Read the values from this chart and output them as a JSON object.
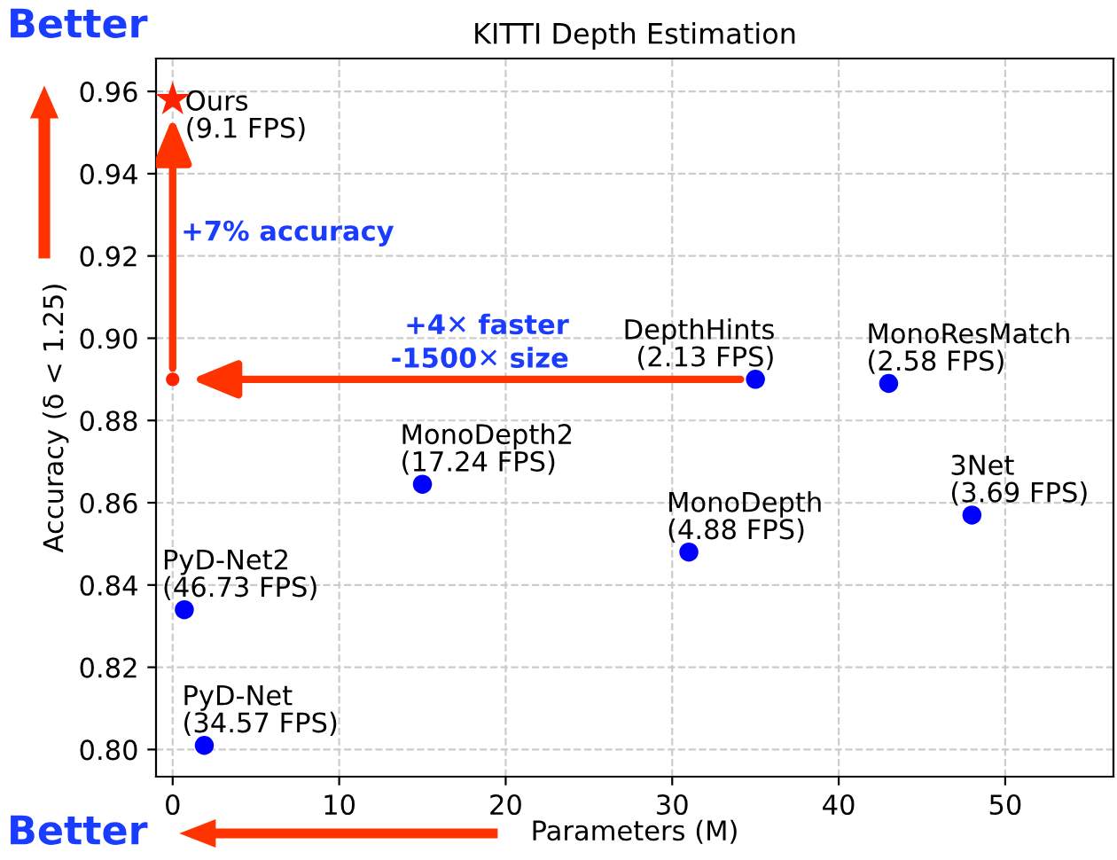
{
  "chart_data": {
    "type": "scatter",
    "title": "KITTI Depth Estimation",
    "xlabel": "Parameters (M)",
    "ylabel": "Accuracy (δ < 1.25)",
    "xlim": [
      -1,
      56.5
    ],
    "ylim": [
      0.7934,
      0.968
    ],
    "xticks": [
      0,
      10,
      20,
      30,
      40,
      50
    ],
    "yticks": [
      {
        "value": 0.8,
        "label": "0.80"
      },
      0.82,
      0.84,
      0.86,
      0.88,
      {
        "value": 0.9,
        "label": "0.90"
      },
      0.92,
      0.94,
      0.96
    ],
    "grid": true,
    "series": [
      {
        "x": [
          0
        ],
        "values": [
          0.958
        ],
        "color": "#ff2200",
        "marker": "star"
      },
      {
        "x": [
          0
        ],
        "values": [
          0.89
        ],
        "color": "#ff2200",
        "marker": "circle"
      },
      {
        "x": [
          35,
          43,
          15,
          31,
          48,
          0.7,
          1.9
        ],
        "values": [
          0.89,
          0.889,
          0.8645,
          0.848,
          0.857,
          0.834,
          0.801
        ],
        "color": "#0000ff",
        "marker": "circle"
      }
    ],
    "annotations": [
      {
        "text": "Ours\n(9.1 FPS)",
        "x": 0,
        "y": 0.958
      },
      {
        "text": "DepthHints\n(2.13 FPS)",
        "x": 35,
        "y": 0.89
      },
      {
        "text": "MonoResMatch\n(2.58 FPS)",
        "x": 43,
        "y": 0.889
      },
      {
        "text": "MonoDepth2\n(17.24 FPS)",
        "x": 15,
        "y": 0.8645
      },
      {
        "text": "MonoDepth\n(4.88 FPS)",
        "x": 31,
        "y": 0.848
      },
      {
        "text": "3Net\n(3.69 FPS)",
        "x": 48,
        "y": 0.857
      },
      {
        "text": "PyD-Net2\n(46.73 FPS)",
        "x": 0.7,
        "y": 0.834
      },
      {
        "text": "PyD-Net\n(34.57 FPS)",
        "x": 1.9,
        "y": 0.801
      },
      "+7% accuracy",
      "+4✕ faster\n-1500✕ size",
      "Better",
      "Better"
    ]
  }
}
